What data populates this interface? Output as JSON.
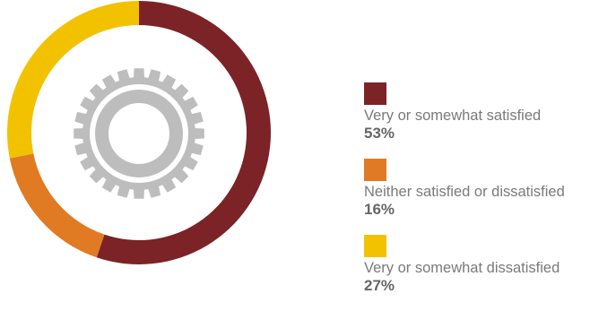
{
  "chart_data": {
    "type": "pie",
    "categories": [
      "Very or somewhat satisfied",
      "Neither satisfied or dissatisfied",
      "Very or somewhat dissatisfied"
    ],
    "values": [
      53,
      16,
      27
    ],
    "value_labels": [
      "53%",
      "16%",
      "27%"
    ],
    "colors": [
      "#7b2326",
      "#e07b23",
      "#f2c200"
    ],
    "donut": true,
    "center_icon": "gear-icon",
    "center_icon_color": "#bdbdbd",
    "legend_position": "right"
  }
}
